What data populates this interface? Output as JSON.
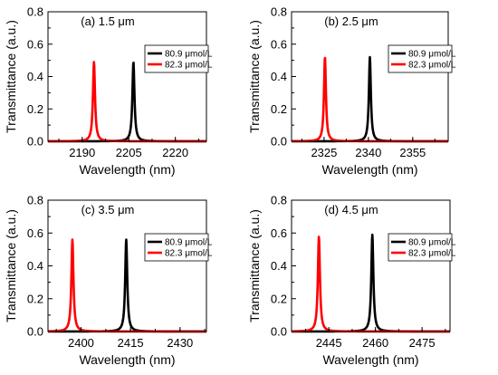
{
  "chart_data": [
    {
      "type": "line",
      "title": "(a) 1.5 μm",
      "xlabel": "Wavelength (nm)",
      "ylabel": "Transmittance (a.u.)",
      "xlim": [
        2179,
        2230
      ],
      "ylim": [
        0,
        0.8
      ],
      "xticks": [
        2190,
        2205,
        2220
      ],
      "yticks": [
        0.0,
        0.2,
        0.4,
        0.6,
        0.8
      ],
      "legend_position": "right",
      "peak_width_nm": 0.8,
      "series": [
        {
          "name": "80.9 μmol/L",
          "color": "#000000",
          "peak_x": 2206.5,
          "peak_y": 0.49
        },
        {
          "name": "82.3 μmol/L",
          "color": "#ff0000",
          "peak_x": 2193.8,
          "peak_y": 0.49
        }
      ]
    },
    {
      "type": "line",
      "title": "(b) 2.5 μm",
      "xlabel": "Wavelength (nm)",
      "ylabel": "Transmittance (a.u.)",
      "xlim": [
        2314,
        2367
      ],
      "ylim": [
        0,
        0.8
      ],
      "xticks": [
        2325,
        2340,
        2355
      ],
      "yticks": [
        0.0,
        0.2,
        0.4,
        0.6,
        0.8
      ],
      "legend_position": "right",
      "peak_width_nm": 0.8,
      "series": [
        {
          "name": "80.9 μmol/L",
          "color": "#000000",
          "peak_x": 2340.5,
          "peak_y": 0.52
        },
        {
          "name": "82.3 μmol/L",
          "color": "#ff0000",
          "peak_x": 2325.3,
          "peak_y": 0.52
        }
      ]
    },
    {
      "type": "line",
      "title": "(c) 3.5 μm",
      "xlabel": "Wavelength (nm)",
      "ylabel": "Transmittance (a.u.)",
      "xlim": [
        2390,
        2438
      ],
      "ylim": [
        0,
        0.8
      ],
      "xticks": [
        2400,
        2415,
        2430
      ],
      "yticks": [
        0.0,
        0.2,
        0.4,
        0.6,
        0.8
      ],
      "legend_position": "right",
      "peak_width_nm": 0.75,
      "series": [
        {
          "name": "80.9 μmol/L",
          "color": "#000000",
          "peak_x": 2413.7,
          "peak_y": 0.56
        },
        {
          "name": "82.3 μmol/L",
          "color": "#ff0000",
          "peak_x": 2397.4,
          "peak_y": 0.56
        }
      ]
    },
    {
      "type": "line",
      "title": "(d) 4.5 μm",
      "xlabel": "Wavelength (nm)",
      "ylabel": "Transmittance (a.u.)",
      "xlim": [
        2433,
        2484
      ],
      "ylim": [
        0,
        0.8
      ],
      "xticks": [
        2445,
        2460,
        2475
      ],
      "yticks": [
        0.0,
        0.2,
        0.4,
        0.6,
        0.8
      ],
      "legend_position": "right",
      "peak_width_nm": 0.8,
      "series": [
        {
          "name": "80.9 μmol/L",
          "color": "#000000",
          "peak_x": 2459.0,
          "peak_y": 0.59
        },
        {
          "name": "82.3 μmol/L",
          "color": "#ff0000",
          "peak_x": 2441.8,
          "peak_y": 0.58
        }
      ]
    }
  ]
}
